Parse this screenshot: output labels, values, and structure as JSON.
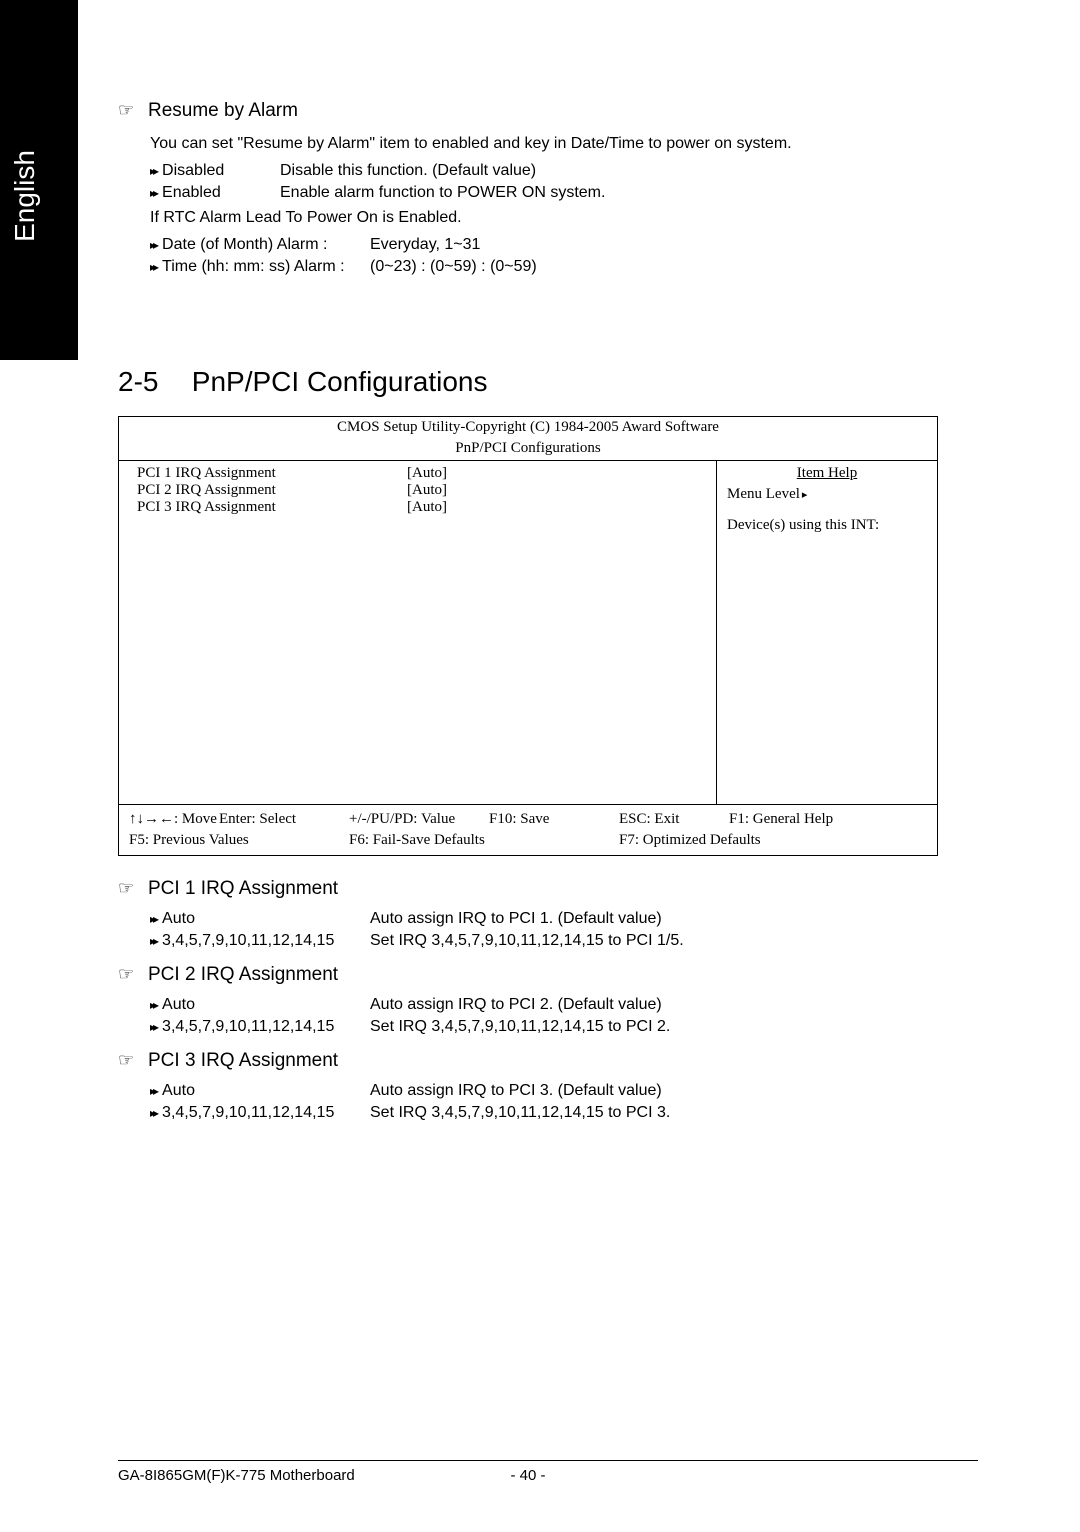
{
  "tab": "English",
  "resume": {
    "title": "Resume by Alarm",
    "desc": "You can set \"Resume by Alarm\" item to enabled and key in Date/Time to power on system.",
    "disabled_k": "Disabled",
    "disabled_v": "Disable this function. (Default value)",
    "enabled_k": "Enabled",
    "enabled_v": "Enable alarm function to POWER ON system.",
    "rtc_line": "If RTC Alarm Lead To Power On is Enabled.",
    "date_k": "Date (of Month) Alarm :",
    "date_v": "Everyday, 1~31",
    "time_k": "Time (hh: mm: ss) Alarm :",
    "time_v": "(0~23) : (0~59) : (0~59)"
  },
  "chapter": {
    "num": "2-5",
    "title": "PnP/PCI Configurations"
  },
  "bios": {
    "line1": "CMOS Setup Utility-Copyright (C) 1984-2005 Award Software",
    "line2": "PnP/PCI Configurations",
    "rows": [
      {
        "k": "PCI 1 IRQ Assignment",
        "v": "[Auto]"
      },
      {
        "k": "PCI 2 IRQ Assignment",
        "v": "[Auto]"
      },
      {
        "k": "PCI 3 IRQ Assignment",
        "v": "[Auto]"
      }
    ],
    "item_help": "Item Help",
    "menu_level": "Menu Level",
    "devices": "Device(s) using this INT:",
    "f_move": "↑↓→←: Move",
    "f_enter": "Enter: Select",
    "f_value": "+/-/PU/PD: Value",
    "f_save": "F10: Save",
    "f_exit": "ESC: Exit",
    "f_help": "F1: General Help",
    "f_prev": "F5: Previous Values",
    "f_fail": "F6: Fail-Save Defaults",
    "f_opt": "F7: Optimized Defaults"
  },
  "pci": [
    {
      "title": "PCI 1 IRQ Assignment",
      "auto_k": "Auto",
      "auto_v": "Auto assign IRQ to PCI 1. (Default value)",
      "list_k": "3,4,5,7,9,10,11,12,14,15",
      "list_v": "Set IRQ 3,4,5,7,9,10,11,12,14,15 to PCI 1/5."
    },
    {
      "title": "PCI 2 IRQ Assignment",
      "auto_k": "Auto",
      "auto_v": "Auto assign IRQ to PCI 2. (Default value)",
      "list_k": "3,4,5,7,9,10,11,12,14,15",
      "list_v": "Set IRQ 3,4,5,7,9,10,11,12,14,15 to PCI 2."
    },
    {
      "title": "PCI 3 IRQ Assignment",
      "auto_k": "Auto",
      "auto_v": "Auto assign IRQ to PCI 3. (Default value)",
      "list_k": "3,4,5,7,9,10,11,12,14,15",
      "list_v": "Set IRQ 3,4,5,7,9,10,11,12,14,15 to PCI 3."
    }
  ],
  "footer": {
    "mb": "GA-8I865GM(F)K-775 Motherboard",
    "page": "- 40 -"
  }
}
